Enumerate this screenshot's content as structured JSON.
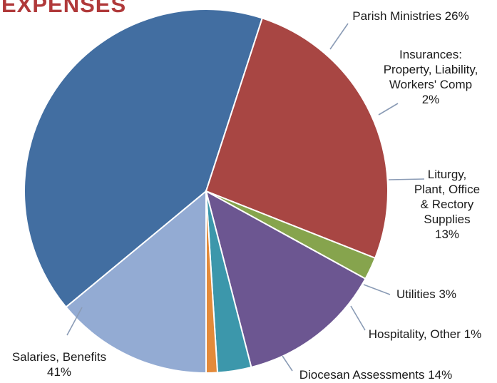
{
  "chart_data": {
    "type": "pie",
    "title": "EXPENSES",
    "start_angle_deg": 0,
    "direction": "clockwise",
    "slices": [
      {
        "name": "Diocesan Assessments",
        "value": 14,
        "label_lines": [
          "Diocesan Assessments 14%"
        ],
        "color": "#93abd3"
      },
      {
        "name": "Salaries, Benefits",
        "value": 41,
        "label_lines": [
          "Salaries, Benefits",
          "41%"
        ],
        "color": "#426ea1"
      },
      {
        "name": "Parish Ministries",
        "value": 26,
        "label_lines": [
          "Parish Ministries 26%"
        ],
        "color": "#a84643"
      },
      {
        "name": "Insurances: Property, Liability, Workers' Comp",
        "value": 2,
        "label_lines": [
          "Insurances:",
          "Property, Liability,",
          "Workers' Comp",
          "2%"
        ],
        "color": "#86a44d"
      },
      {
        "name": "Liturgy, Plant, Office & Rectory Supplies",
        "value": 13,
        "label_lines": [
          "Liturgy,",
          "Plant, Office",
          "& Rectory",
          "Supplies",
          "13%"
        ],
        "color": "#6c5691"
      },
      {
        "name": "Utilities",
        "value": 3,
        "label_lines": [
          "Utilities 3%"
        ],
        "color": "#3c97ab"
      },
      {
        "name": "Hospitality, Other",
        "value": 1,
        "label_lines": [
          "Hospitality, Other 1%"
        ],
        "color": "#e38a3a"
      }
    ]
  }
}
